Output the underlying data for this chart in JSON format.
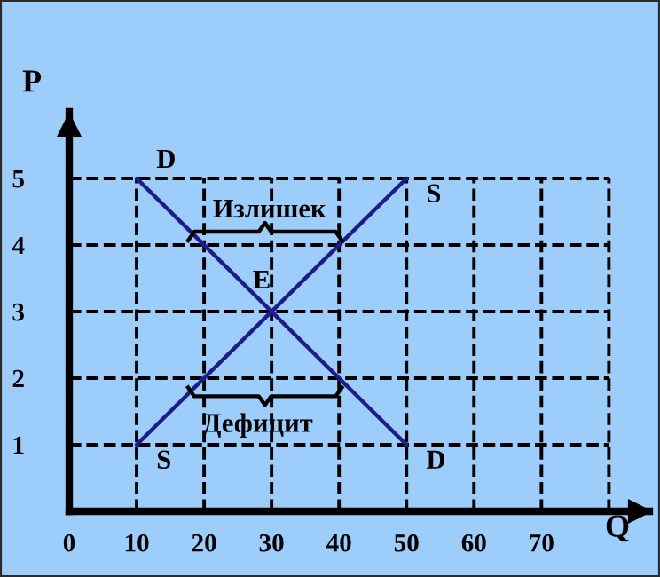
{
  "chart_data": {
    "type": "line",
    "xlabel": "Q",
    "ylabel": "P",
    "x": [
      10,
      50
    ],
    "series": [
      {
        "name": "D",
        "color": "#1c1c8c",
        "values": [
          5,
          1
        ]
      },
      {
        "name": "S",
        "color": "#1c1c8c",
        "values": [
          1,
          5
        ]
      }
    ],
    "xlim": [
      0,
      86
    ],
    "ylim": [
      0,
      6
    ],
    "xticks": [
      0,
      10,
      20,
      30,
      40,
      50,
      60,
      70,
      {
        "value": 80,
        "label": null
      }
    ],
    "yticks": [
      1,
      2,
      3,
      4,
      5
    ],
    "grid": true,
    "annotations": [
      {
        "text": "E",
        "x": 30,
        "y": 3
      },
      "Излишек",
      "Дефицит"
    ]
  }
}
